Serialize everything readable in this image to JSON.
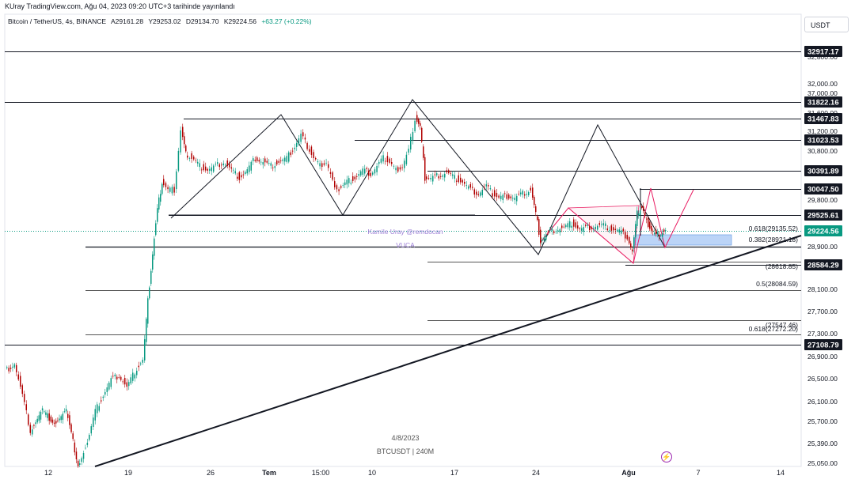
{
  "header": {
    "publish_text": "KUray TradingView.com, Ağu 04, 2023 09:20 UTC+3 tarihinde yayınlandı",
    "symbol": "Bitcoin / TetherUS, 4s, BINANCE",
    "open": "A29161.28",
    "high": "Y29253.02",
    "low": "D29134.70",
    "close": "K29224.56",
    "change": "+63.27 (+0.22%)",
    "currency_button": "USDT"
  },
  "watermark": {
    "author": "Kamile Uray @remdocan",
    "tag": "VUCA",
    "date": "4/8/2023",
    "symbol_interval": "BTCUSDT | 240M"
  },
  "icons": {
    "flash": "lightning-icon"
  },
  "colors": {
    "up": "#089981",
    "down": "#b00000",
    "line": "#131722",
    "pink": "#e91e63",
    "fib_box": "#bbd4f7",
    "last_price": "#089981"
  },
  "chart_data": {
    "type": "candlestick",
    "symbol": "BTCUSDT",
    "interval": "4s",
    "y_axis": {
      "ticks": [
        25050,
        25390,
        25700,
        26100,
        26500,
        26900,
        27300,
        27700,
        28100,
        28900,
        29800,
        30800,
        31200,
        31600,
        32000,
        32800,
        37000
      ],
      "tick_labels": [
        "25,050.00",
        "25,390.00",
        "25,700.00",
        "26,100.00",
        "26,500.00",
        "26,900.00",
        "27,300.00",
        "27,700.00",
        "28,100.00",
        "28,900.00",
        "29,800.00",
        "30,800.00",
        "31,200.00",
        "31,600.00",
        "32,000.00",
        "32,800.00",
        "37,000.00"
      ]
    },
    "x_axis": {
      "tick_labels": [
        "12",
        "19",
        "26",
        "Tem",
        "15:00",
        "10",
        "17",
        "24",
        "Ağu",
        "7",
        "14"
      ]
    },
    "price_labels": [
      {
        "label": "32917.17",
        "value": 32917.17
      },
      {
        "label": "31822.16",
        "value": 31822.16
      },
      {
        "label": "31467.83",
        "value": 31467.83
      },
      {
        "label": "31023.53",
        "value": 31023.53
      },
      {
        "label": "30391.89",
        "value": 30391.89
      },
      {
        "label": "30047.50",
        "value": 30047.5
      },
      {
        "label": "29525.61",
        "value": 29525.61
      },
      {
        "label": "28584.29",
        "value": 28584.29
      },
      {
        "label": "27108.79",
        "value": 27108.79
      }
    ],
    "last_price": {
      "label": "29224.56",
      "value": 29224.56
    },
    "fib_labels": [
      {
        "text": "0.618(29135.52)",
        "value": 29135.52
      },
      {
        "text": "0.382(28921.18)",
        "value": 28921.18
      },
      {
        "text": "(28618.85)",
        "value": 28618.85
      },
      {
        "text": "0.5(28084.59)",
        "value": 28084.59
      },
      {
        "text": "(27547.46)",
        "value": 27547.46
      },
      {
        "text": "0.618(27272.20)",
        "value": 27272.2
      }
    ],
    "key_points": [
      {
        "date": "Haz 10",
        "price": 26200
      },
      {
        "date": "Haz 15",
        "price": 25050
      },
      {
        "date": "Haz 21",
        "price": 28900
      },
      {
        "date": "Haz 23",
        "price": 31300
      },
      {
        "date": "Tem 1",
        "price": 30500
      },
      {
        "date": "Tem 6",
        "price": 31400
      },
      {
        "date": "Tem 8",
        "price": 30300
      },
      {
        "date": "Tem 13",
        "price": 31700
      },
      {
        "date": "Tem 14",
        "price": 30300
      },
      {
        "date": "Tem 20",
        "price": 29900
      },
      {
        "date": "Tem 24",
        "price": 29000
      },
      {
        "date": "Ağu 1",
        "price": 28650
      },
      {
        "date": "Ağu 2",
        "price": 29700
      },
      {
        "date": "Ağu 4",
        "price": 29224.56
      }
    ]
  }
}
